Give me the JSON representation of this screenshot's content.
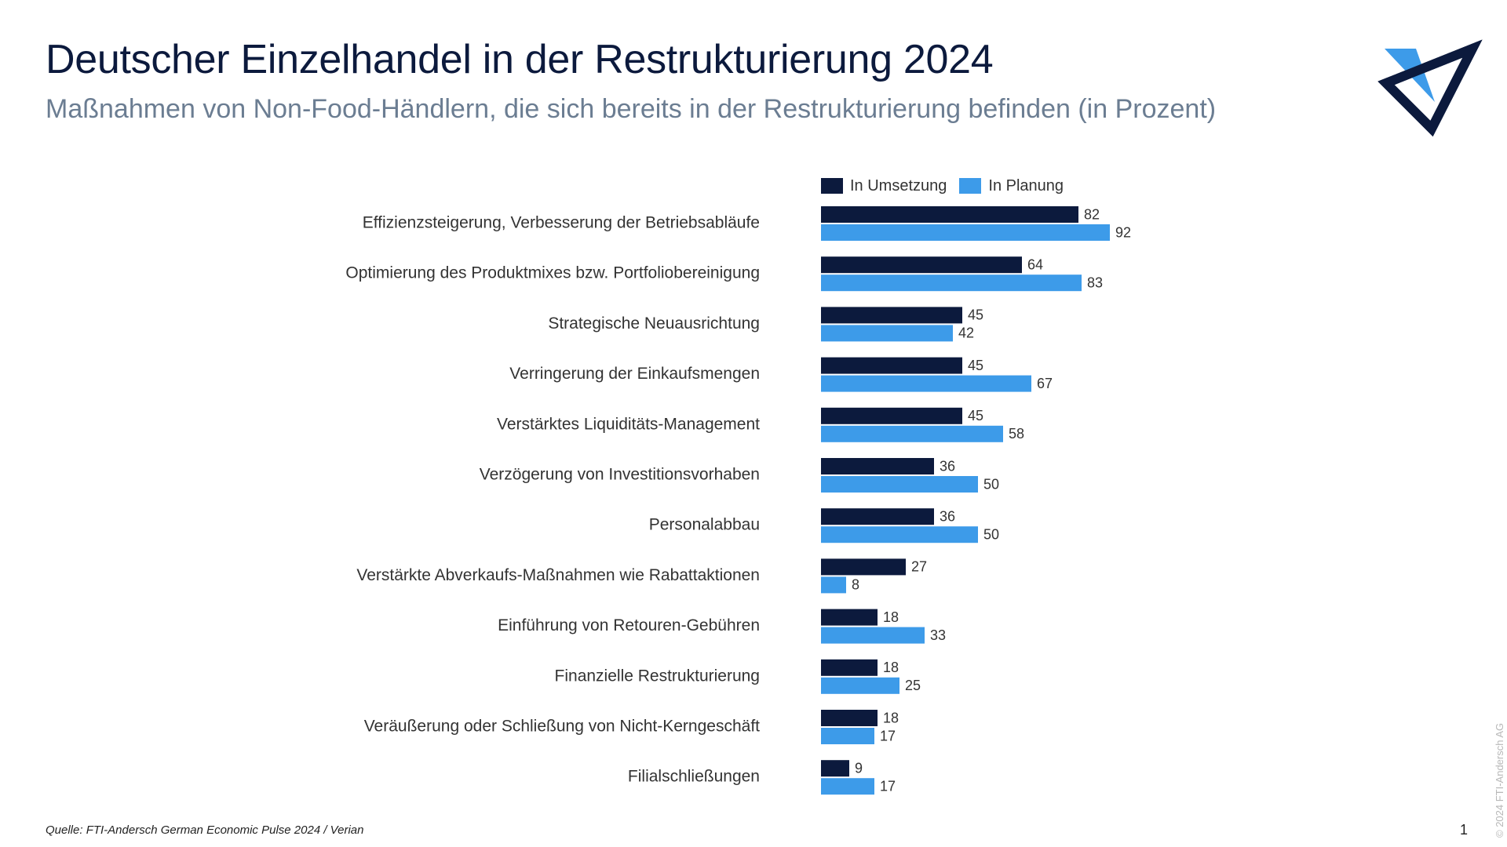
{
  "header": {
    "title": "Deutscher Einzelhandel in der Restrukturierung 2024",
    "subtitle": "Maßnahmen von Non-Food-Händlern, die sich bereits in der Restrukturierung befinden (in Prozent)"
  },
  "logo": {
    "icon": "triangle-logo-icon",
    "color_dark": "#0c1a3d",
    "color_light": "#3d9be9"
  },
  "colors": {
    "in_umsetzung": "#0c1a3d",
    "in_planung": "#3d9be9"
  },
  "chart_data": {
    "type": "bar",
    "orientation": "horizontal",
    "title": "Maßnahmen von Non-Food-Händlern, die sich bereits in der Restrukturierung befinden (in Prozent)",
    "legend_position": "top",
    "categories": [
      "Effizienzsteigerung, Verbesserung der Betriebsabläufe",
      "Optimierung des Produktmixes bzw. Portfoliobereinigung",
      "Strategische Neuausrichtung",
      "Verringerung der Einkaufsmengen",
      "Verstärktes Liquiditäts-Management",
      "Verzögerung von Investitionsvorhaben",
      "Personalabbau",
      "Verstärkte Abverkaufs-Maßnahmen wie Rabattaktionen",
      "Einführung von Retouren-Gebühren",
      "Finanzielle Restrukturierung",
      "Veräußerung oder Schließung von Nicht-Kerngeschäft",
      "Filialschließungen"
    ],
    "series": [
      {
        "name": "In Umsetzung",
        "color": "#0c1a3d",
        "values": [
          82,
          64,
          45,
          45,
          45,
          36,
          36,
          27,
          18,
          18,
          18,
          9
        ]
      },
      {
        "name": "In Planung",
        "color": "#3d9be9",
        "values": [
          92,
          83,
          42,
          67,
          58,
          50,
          50,
          8,
          33,
          25,
          17,
          17
        ]
      }
    ],
    "xlim": [
      0,
      100
    ],
    "grid": false
  },
  "footer": {
    "source": "Quelle: FTI-Andersch German Economic Pulse 2024 / Verian",
    "page_number": "1",
    "copyright": "© 2024 FTI-Andersch AG"
  }
}
